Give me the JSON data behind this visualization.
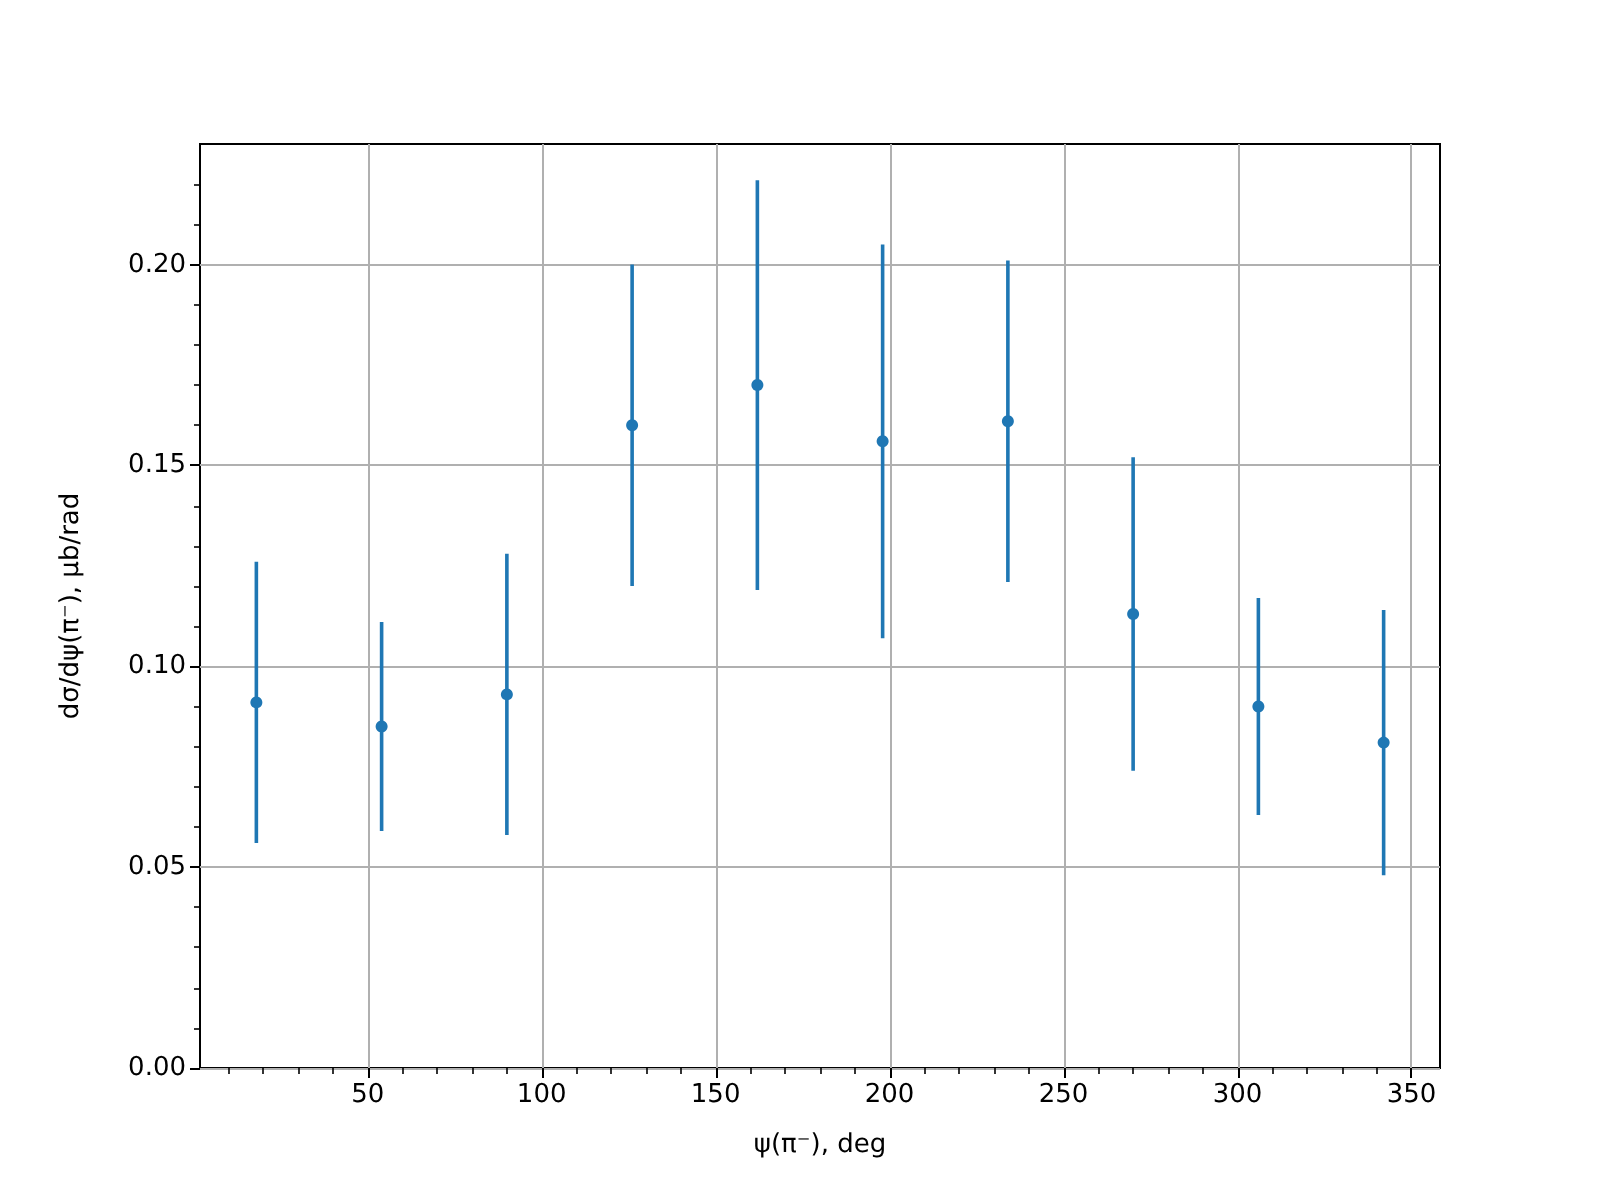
{
  "chart_data": {
    "type": "scatter",
    "xlabel": "ψ(π⁻), deg",
    "ylabel": "dσ/dψ(π⁻), µb/rad",
    "x": [
      18,
      54,
      90,
      126,
      162,
      198,
      234,
      270,
      306,
      342
    ],
    "series": [
      {
        "color": "#1f77b4",
        "values": [
          0.091,
          0.085,
          0.093,
          0.16,
          0.17,
          0.156,
          0.161,
          0.113,
          0.09,
          0.081
        ],
        "errors": [
          0.035,
          0.026,
          0.035,
          0.04,
          0.051,
          0.049,
          0.04,
          0.039,
          0.027,
          0.033
        ]
      }
    ],
    "xlim": [
      1.8,
      358.2
    ],
    "ylim": [
      0,
      0.23
    ],
    "xticks": [
      {
        "value": 10,
        "label": null
      },
      {
        "value": 20,
        "label": null
      },
      {
        "value": 30,
        "label": null
      },
      {
        "value": 40,
        "label": null
      },
      50,
      {
        "value": 60,
        "label": null
      },
      {
        "value": 70,
        "label": null
      },
      {
        "value": 80,
        "label": null
      },
      {
        "value": 90,
        "label": null
      },
      100,
      {
        "value": 110,
        "label": null
      },
      {
        "value": 120,
        "label": null
      },
      {
        "value": 130,
        "label": null
      },
      {
        "value": 140,
        "label": null
      },
      150,
      {
        "value": 160,
        "label": null
      },
      {
        "value": 170,
        "label": null
      },
      {
        "value": 180,
        "label": null
      },
      {
        "value": 190,
        "label": null
      },
      200,
      {
        "value": 210,
        "label": null
      },
      {
        "value": 220,
        "label": null
      },
      {
        "value": 230,
        "label": null
      },
      {
        "value": 240,
        "label": null
      },
      250,
      {
        "value": 260,
        "label": null
      },
      {
        "value": 270,
        "label": null
      },
      {
        "value": 280,
        "label": null
      },
      {
        "value": 290,
        "label": null
      },
      300,
      {
        "value": 310,
        "label": null
      },
      {
        "value": 320,
        "label": null
      },
      {
        "value": 330,
        "label": null
      },
      {
        "value": 340,
        "label": null
      },
      350
    ],
    "yticks": [
      {
        "value": 0,
        "label": "0.00"
      },
      {
        "value": 0.01,
        "label": null
      },
      {
        "value": 0.02,
        "label": null
      },
      {
        "value": 0.03,
        "label": null
      },
      {
        "value": 0.04,
        "label": null
      },
      {
        "value": 0.05,
        "label": "0.05"
      },
      {
        "value": 0.06,
        "label": null
      },
      {
        "value": 0.07,
        "label": null
      },
      {
        "value": 0.08,
        "label": null
      },
      {
        "value": 0.09,
        "label": null
      },
      {
        "value": 0.1,
        "label": "0.10"
      },
      {
        "value": 0.11,
        "label": null
      },
      {
        "value": 0.12,
        "label": null
      },
      {
        "value": 0.13,
        "label": null
      },
      {
        "value": 0.14,
        "label": null
      },
      {
        "value": 0.15,
        "label": "0.15"
      },
      {
        "value": 0.16,
        "label": null
      },
      {
        "value": 0.17,
        "label": null
      },
      {
        "value": 0.18,
        "label": null
      },
      {
        "value": 0.19,
        "label": null
      },
      {
        "value": 0.2,
        "label": "0.20"
      },
      {
        "value": 0.21,
        "label": null
      },
      {
        "value": 0.22,
        "label": null
      }
    ],
    "grid": true,
    "marker": "circle"
  }
}
